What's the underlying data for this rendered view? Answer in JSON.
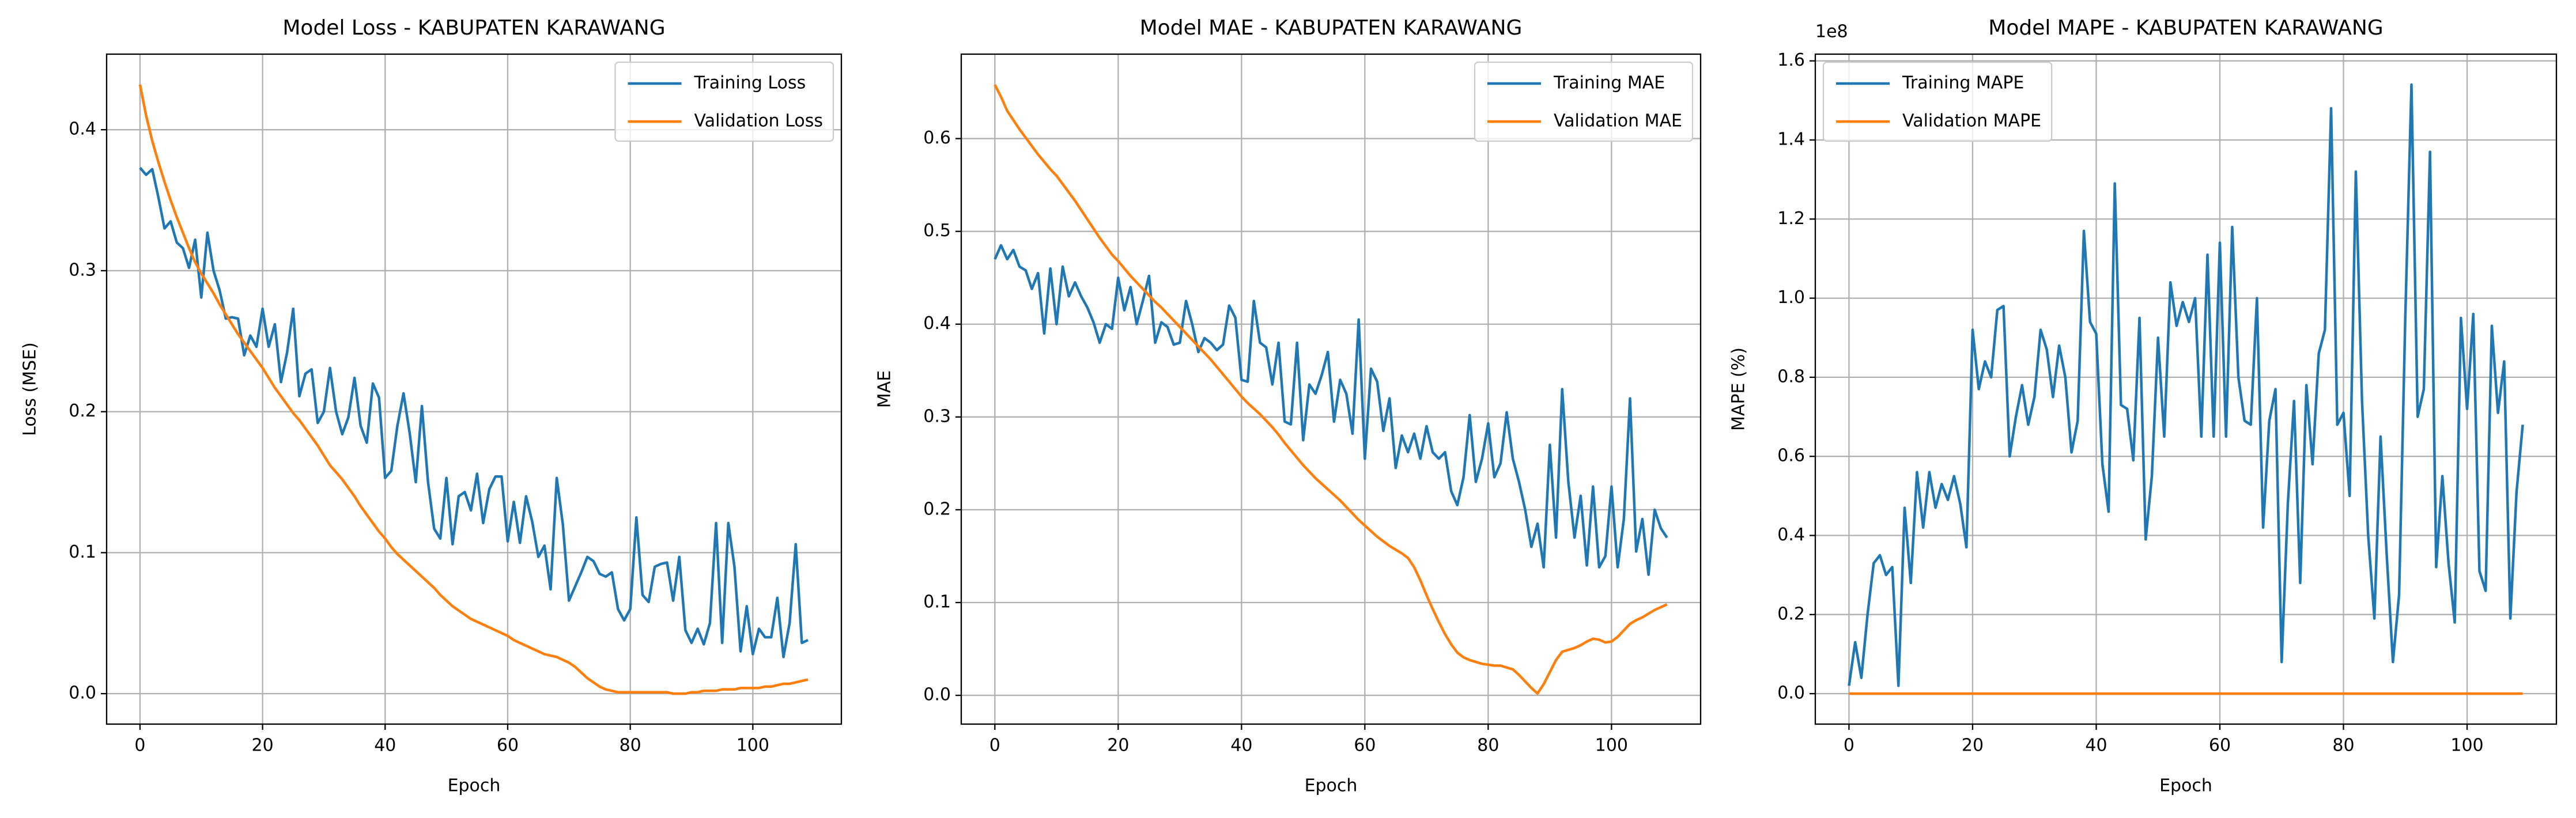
{
  "chart_data": [
    {
      "type": "line",
      "title": "Model Loss - KABUPATEN KARAWANG",
      "x_label": "Epoch",
      "y_label": "Loss (MSE)",
      "grid": true,
      "legend": "upper right",
      "xlim": [
        -5.45,
        114.45
      ],
      "xticks": [
        0,
        20,
        40,
        60,
        80,
        100
      ],
      "ylim": [
        -0.0216,
        0.4536
      ],
      "yticks": [
        {
          "value": 0,
          "label": "0.0"
        },
        0.1,
        0.2,
        0.3,
        0.4
      ],
      "x": [
        0,
        1,
        2,
        3,
        4,
        5,
        6,
        7,
        8,
        9,
        10,
        11,
        12,
        13,
        14,
        15,
        16,
        17,
        18,
        19,
        20,
        21,
        22,
        23,
        24,
        25,
        26,
        27,
        28,
        29,
        30,
        31,
        32,
        33,
        34,
        35,
        36,
        37,
        38,
        39,
        40,
        41,
        42,
        43,
        44,
        45,
        46,
        47,
        48,
        49,
        50,
        51,
        52,
        53,
        54,
        55,
        56,
        57,
        58,
        59,
        60,
        61,
        62,
        63,
        64,
        65,
        66,
        67,
        68,
        69,
        70,
        71,
        72,
        73,
        74,
        75,
        76,
        77,
        78,
        79,
        80,
        81,
        82,
        83,
        84,
        85,
        86,
        87,
        88,
        89,
        90,
        91,
        92,
        93,
        94,
        95,
        96,
        97,
        98,
        99,
        100,
        101,
        102,
        103,
        104,
        105,
        106,
        107,
        108,
        109
      ],
      "series": [
        {
          "name": "Training Loss",
          "color": "#1f77b4",
          "values": [
            0.373,
            0.368,
            0.372,
            0.352,
            0.33,
            0.335,
            0.32,
            0.316,
            0.302,
            0.322,
            0.281,
            0.327,
            0.3,
            0.286,
            0.266,
            0.267,
            0.266,
            0.24,
            0.254,
            0.246,
            0.273,
            0.246,
            0.262,
            0.221,
            0.242,
            0.273,
            0.211,
            0.227,
            0.23,
            0.192,
            0.2,
            0.231,
            0.2,
            0.184,
            0.196,
            0.224,
            0.19,
            0.178,
            0.22,
            0.21,
            0.153,
            0.158,
            0.19,
            0.213,
            0.185,
            0.15,
            0.204,
            0.15,
            0.117,
            0.11,
            0.153,
            0.106,
            0.14,
            0.143,
            0.13,
            0.156,
            0.121,
            0.145,
            0.154,
            0.154,
            0.108,
            0.136,
            0.107,
            0.14,
            0.122,
            0.097,
            0.105,
            0.074,
            0.153,
            0.12,
            0.066,
            0.076,
            0.086,
            0.097,
            0.094,
            0.085,
            0.083,
            0.086,
            0.06,
            0.052,
            0.06,
            0.125,
            0.07,
            0.065,
            0.09,
            0.092,
            0.093,
            0.066,
            0.097,
            0.045,
            0.036,
            0.046,
            0.035,
            0.05,
            0.121,
            0.036,
            0.121,
            0.09,
            0.03,
            0.062,
            0.028,
            0.046,
            0.04,
            0.04,
            0.068,
            0.026,
            0.05,
            0.106,
            0.036,
            0.038
          ]
        },
        {
          "name": "Validation Loss",
          "color": "#ff7f0e",
          "values": [
            0.432,
            0.41,
            0.392,
            0.377,
            0.363,
            0.35,
            0.338,
            0.327,
            0.316,
            0.306,
            0.298,
            0.291,
            0.284,
            0.276,
            0.269,
            0.262,
            0.255,
            0.249,
            0.243,
            0.237,
            0.231,
            0.224,
            0.217,
            0.211,
            0.205,
            0.199,
            0.194,
            0.188,
            0.182,
            0.176,
            0.169,
            0.162,
            0.157,
            0.152,
            0.146,
            0.14,
            0.133,
            0.127,
            0.121,
            0.115,
            0.11,
            0.104,
            0.099,
            0.095,
            0.091,
            0.087,
            0.083,
            0.079,
            0.075,
            0.07,
            0.066,
            0.062,
            0.059,
            0.056,
            0.053,
            0.051,
            0.049,
            0.047,
            0.045,
            0.043,
            0.041,
            0.038,
            0.036,
            0.034,
            0.032,
            0.03,
            0.028,
            0.027,
            0.026,
            0.024,
            0.022,
            0.019,
            0.015,
            0.011,
            0.008,
            0.005,
            0.003,
            0.002,
            0.001,
            0.001,
            0.001,
            0.001,
            0.001,
            0.001,
            0.001,
            0.001,
            0.001,
            0.0,
            0.0,
            0.0,
            0.001,
            0.001,
            0.002,
            0.002,
            0.002,
            0.003,
            0.003,
            0.003,
            0.004,
            0.004,
            0.004,
            0.004,
            0.005,
            0.005,
            0.006,
            0.007,
            0.007,
            0.008,
            0.009,
            0.01
          ]
        }
      ]
    },
    {
      "type": "line",
      "title": "Model MAE - KABUPATEN KARAWANG",
      "x_label": "Epoch",
      "y_label": "MAE",
      "grid": true,
      "legend": "upper right",
      "xlim": [
        -5.45,
        114.45
      ],
      "xticks": [
        0,
        20,
        40,
        60,
        80,
        100
      ],
      "ylim": [
        -0.031,
        0.691
      ],
      "yticks": [
        {
          "value": 0,
          "label": "0.0"
        },
        0.1,
        0.2,
        0.3,
        0.4,
        0.5,
        0.6
      ],
      "x": [
        0,
        1,
        2,
        3,
        4,
        5,
        6,
        7,
        8,
        9,
        10,
        11,
        12,
        13,
        14,
        15,
        16,
        17,
        18,
        19,
        20,
        21,
        22,
        23,
        24,
        25,
        26,
        27,
        28,
        29,
        30,
        31,
        32,
        33,
        34,
        35,
        36,
        37,
        38,
        39,
        40,
        41,
        42,
        43,
        44,
        45,
        46,
        47,
        48,
        49,
        50,
        51,
        52,
        53,
        54,
        55,
        56,
        57,
        58,
        59,
        60,
        61,
        62,
        63,
        64,
        65,
        66,
        67,
        68,
        69,
        70,
        71,
        72,
        73,
        74,
        75,
        76,
        77,
        78,
        79,
        80,
        81,
        82,
        83,
        84,
        85,
        86,
        87,
        88,
        89,
        90,
        91,
        92,
        93,
        94,
        95,
        96,
        97,
        98,
        99,
        100,
        101,
        102,
        103,
        104,
        105,
        106,
        107,
        108,
        109
      ],
      "series": [
        {
          "name": "Training MAE",
          "color": "#1f77b4",
          "values": [
            0.47,
            0.485,
            0.47,
            0.48,
            0.462,
            0.458,
            0.438,
            0.455,
            0.39,
            0.46,
            0.4,
            0.462,
            0.43,
            0.445,
            0.43,
            0.418,
            0.402,
            0.38,
            0.4,
            0.395,
            0.45,
            0.415,
            0.44,
            0.4,
            0.425,
            0.452,
            0.38,
            0.402,
            0.397,
            0.378,
            0.38,
            0.425,
            0.4,
            0.37,
            0.385,
            0.38,
            0.372,
            0.378,
            0.42,
            0.407,
            0.34,
            0.338,
            0.425,
            0.38,
            0.375,
            0.335,
            0.38,
            0.295,
            0.292,
            0.38,
            0.275,
            0.335,
            0.325,
            0.345,
            0.37,
            0.295,
            0.34,
            0.325,
            0.282,
            0.405,
            0.255,
            0.352,
            0.338,
            0.285,
            0.32,
            0.245,
            0.28,
            0.262,
            0.282,
            0.255,
            0.29,
            0.262,
            0.255,
            0.262,
            0.22,
            0.205,
            0.235,
            0.302,
            0.23,
            0.255,
            0.293,
            0.235,
            0.25,
            0.305,
            0.255,
            0.23,
            0.2,
            0.16,
            0.185,
            0.138,
            0.27,
            0.17,
            0.33,
            0.23,
            0.17,
            0.215,
            0.14,
            0.225,
            0.138,
            0.15,
            0.225,
            0.138,
            0.19,
            0.32,
            0.155,
            0.19,
            0.13,
            0.2,
            0.18,
            0.17
          ]
        },
        {
          "name": "Validation MAE",
          "color": "#ff7f0e",
          "values": [
            0.658,
            0.645,
            0.63,
            0.62,
            0.61,
            0.601,
            0.592,
            0.583,
            0.575,
            0.567,
            0.56,
            0.551,
            0.542,
            0.533,
            0.523,
            0.513,
            0.503,
            0.493,
            0.484,
            0.475,
            0.468,
            0.46,
            0.452,
            0.445,
            0.438,
            0.431,
            0.424,
            0.418,
            0.411,
            0.404,
            0.397,
            0.39,
            0.383,
            0.376,
            0.369,
            0.362,
            0.354,
            0.346,
            0.338,
            0.33,
            0.322,
            0.315,
            0.309,
            0.303,
            0.296,
            0.289,
            0.281,
            0.272,
            0.264,
            0.256,
            0.248,
            0.241,
            0.234,
            0.228,
            0.222,
            0.216,
            0.21,
            0.203,
            0.196,
            0.189,
            0.183,
            0.177,
            0.171,
            0.166,
            0.161,
            0.157,
            0.153,
            0.148,
            0.138,
            0.124,
            0.108,
            0.093,
            0.079,
            0.066,
            0.055,
            0.046,
            0.041,
            0.038,
            0.036,
            0.034,
            0.033,
            0.032,
            0.032,
            0.03,
            0.028,
            0.022,
            0.015,
            0.008,
            0.002,
            0.012,
            0.025,
            0.038,
            0.047,
            0.049,
            0.051,
            0.054,
            0.058,
            0.061,
            0.06,
            0.057,
            0.058,
            0.063,
            0.07,
            0.077,
            0.081,
            0.084,
            0.088,
            0.092,
            0.095,
            0.098
          ]
        }
      ]
    },
    {
      "type": "line",
      "title": "Model MAPE - KABUPATEN KARAWANG",
      "x_label": "Epoch",
      "y_label": "MAPE (%)",
      "y_offset_label": "1e8",
      "grid": true,
      "legend": "upper left",
      "xlim": [
        -5.45,
        114.45
      ],
      "xticks": [
        0,
        20,
        40,
        60,
        80,
        100
      ],
      "ylim": [
        -0.077,
        1.617
      ],
      "yticks": [
        {
          "value": 0,
          "label": "0.0"
        },
        0.2,
        0.4,
        0.6,
        0.8,
        {
          "value": 1,
          "label": "1.0"
        },
        1.2,
        1.4,
        1.6
      ],
      "x": [
        0,
        1,
        2,
        3,
        4,
        5,
        6,
        7,
        8,
        9,
        10,
        11,
        12,
        13,
        14,
        15,
        16,
        17,
        18,
        19,
        20,
        21,
        22,
        23,
        24,
        25,
        26,
        27,
        28,
        29,
        30,
        31,
        32,
        33,
        34,
        35,
        36,
        37,
        38,
        39,
        40,
        41,
        42,
        43,
        44,
        45,
        46,
        47,
        48,
        49,
        50,
        51,
        52,
        53,
        54,
        55,
        56,
        57,
        58,
        59,
        60,
        61,
        62,
        63,
        64,
        65,
        66,
        67,
        68,
        69,
        70,
        71,
        72,
        73,
        74,
        75,
        76,
        77,
        78,
        79,
        80,
        81,
        82,
        83,
        84,
        85,
        86,
        87,
        88,
        89,
        90,
        91,
        92,
        93,
        94,
        95,
        96,
        97,
        98,
        99,
        100,
        101,
        102,
        103,
        104,
        105,
        106,
        107,
        108,
        109
      ],
      "series": [
        {
          "name": "Training MAPE",
          "color": "#1f77b4",
          "values": [
            0.02,
            0.13,
            0.04,
            0.2,
            0.33,
            0.35,
            0.3,
            0.32,
            0.02,
            0.47,
            0.28,
            0.56,
            0.42,
            0.56,
            0.47,
            0.53,
            0.49,
            0.55,
            0.48,
            0.37,
            0.92,
            0.77,
            0.84,
            0.8,
            0.97,
            0.98,
            0.6,
            0.7,
            0.78,
            0.68,
            0.75,
            0.92,
            0.87,
            0.75,
            0.88,
            0.8,
            0.61,
            0.69,
            1.17,
            0.94,
            0.91,
            0.58,
            0.46,
            1.29,
            0.73,
            0.72,
            0.59,
            0.95,
            0.39,
            0.55,
            0.9,
            0.65,
            1.04,
            0.93,
            0.99,
            0.94,
            1.0,
            0.65,
            1.11,
            0.65,
            1.14,
            0.65,
            1.18,
            0.8,
            0.69,
            0.68,
            1.0,
            0.42,
            0.69,
            0.77,
            0.08,
            0.48,
            0.74,
            0.28,
            0.78,
            0.58,
            0.86,
            0.92,
            1.48,
            0.68,
            0.71,
            0.5,
            1.32,
            0.74,
            0.4,
            0.19,
            0.65,
            0.35,
            0.08,
            0.25,
            0.95,
            1.54,
            0.7,
            0.77,
            1.37,
            0.32,
            0.55,
            0.33,
            0.18,
            0.95,
            0.72,
            0.96,
            0.31,
            0.26,
            0.93,
            0.71,
            0.84,
            0.19,
            0.51,
            0.68
          ]
        },
        {
          "name": "Validation MAPE",
          "color": "#ff7f0e",
          "values": [
            0,
            0,
            0,
            0,
            0,
            0,
            0,
            0,
            0,
            0,
            0,
            0,
            0,
            0,
            0,
            0,
            0,
            0,
            0,
            0,
            0,
            0,
            0,
            0,
            0,
            0,
            0,
            0,
            0,
            0,
            0,
            0,
            0,
            0,
            0,
            0,
            0,
            0,
            0,
            0,
            0,
            0,
            0,
            0,
            0,
            0,
            0,
            0,
            0,
            0,
            0,
            0,
            0,
            0,
            0,
            0,
            0,
            0,
            0,
            0,
            0,
            0,
            0,
            0,
            0,
            0,
            0,
            0,
            0,
            0,
            0,
            0,
            0,
            0,
            0,
            0,
            0,
            0,
            0,
            0,
            0,
            0,
            0,
            0,
            0,
            0,
            0,
            0,
            0,
            0,
            0,
            0,
            0,
            0,
            0,
            0,
            0,
            0,
            0,
            0,
            0,
            0,
            0,
            0,
            0,
            0,
            0,
            0,
            0,
            0
          ]
        }
      ]
    }
  ]
}
